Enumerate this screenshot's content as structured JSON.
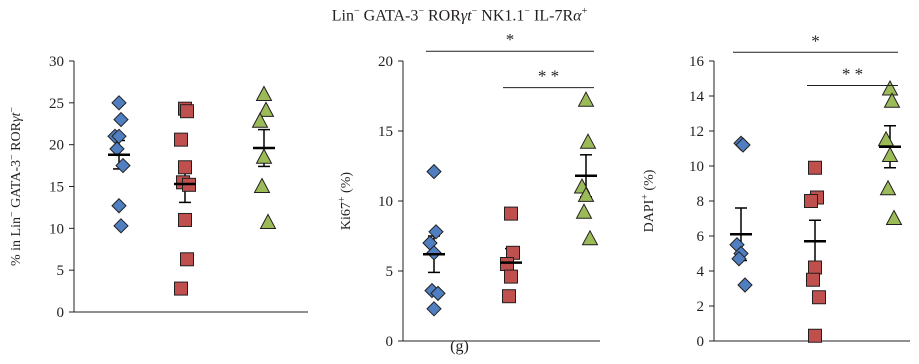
{
  "figure": {
    "title_parts": [
      {
        "t": "Lin"
      },
      {
        "sup": "−"
      },
      {
        "t": " GATA-3"
      },
      {
        "sup": "−"
      },
      {
        "t": " ROR"
      },
      {
        "it": "γt"
      },
      {
        "sup": "−"
      },
      {
        "t": " NK1.1"
      },
      {
        "sup": "−"
      },
      {
        "t": " IL-7R"
      },
      {
        "it": "α"
      },
      {
        "sup": "+"
      }
    ],
    "panel_label": "(g)"
  },
  "colors": {
    "blue": "#4f7fc0",
    "red": "#c0504d",
    "green": "#9bbb59",
    "ink": "#231f20"
  },
  "chart_data": [
    {
      "type": "scatter",
      "ylabel_parts": [
        {
          "t": "% in Lin"
        },
        {
          "sup": "−"
        },
        {
          "t": " GATA-3"
        },
        {
          "sup": "−"
        },
        {
          "t": " ROR"
        },
        {
          "it": "γt"
        },
        {
          "sup": "−"
        }
      ],
      "ylim": [
        0,
        30
      ],
      "yticks": [
        0,
        5,
        10,
        15,
        20,
        25,
        30
      ],
      "groups": [
        {
          "marker": "diamond",
          "color": "blue",
          "values": [
            25,
            23,
            21,
            21,
            19.5,
            17.5,
            12.7,
            10.3
          ],
          "mean": 18.8,
          "sem": 1.7
        },
        {
          "marker": "square",
          "color": "red",
          "values": [
            24.3,
            24,
            20.6,
            17.3,
            15.5,
            15.2,
            11,
            6.3,
            2.8
          ],
          "mean": 15.3,
          "sem": 2.2
        },
        {
          "marker": "triangle",
          "color": "green",
          "values": [
            26,
            24.1,
            22.8,
            18.5,
            15,
            10.7
          ],
          "mean": 19.6,
          "sem": 2.2
        }
      ],
      "significance": []
    },
    {
      "type": "scatter",
      "ylabel_parts": [
        {
          "t": "Ki67"
        },
        {
          "sup": "+"
        },
        {
          "t": " (%)"
        }
      ],
      "ylim": [
        0,
        20
      ],
      "yticks": [
        0,
        5,
        10,
        15,
        20
      ],
      "groups": [
        {
          "marker": "diamond",
          "color": "blue",
          "values": [
            12.1,
            7.8,
            7,
            6.3,
            3.6,
            3.4,
            2.3
          ],
          "mean": 6.2,
          "sem": 1.3
        },
        {
          "marker": "square",
          "color": "red",
          "values": [
            9.1,
            6.3,
            5.5,
            4.6,
            3.2
          ],
          "mean": 5.6,
          "sem": 1.0
        },
        {
          "marker": "triangle",
          "color": "green",
          "values": [
            17.2,
            14.2,
            11,
            10.4,
            9.2,
            7.3
          ],
          "mean": 11.8,
          "sem": 1.5
        }
      ],
      "significance": [
        {
          "from": 0,
          "to": 2,
          "label": "*",
          "y": 20.7
        },
        {
          "from": 1,
          "to": 2,
          "label": "* *",
          "y": 18.1
        }
      ]
    },
    {
      "type": "scatter",
      "ylabel_parts": [
        {
          "t": "DAPI"
        },
        {
          "sup": "+"
        },
        {
          "t": " (%)"
        }
      ],
      "ylim": [
        0,
        16
      ],
      "yticks": [
        0,
        2,
        4,
        6,
        8,
        10,
        12,
        14,
        16
      ],
      "groups": [
        {
          "marker": "diamond",
          "color": "blue",
          "values": [
            11.3,
            11.2,
            5.5,
            5,
            4.7,
            3.2
          ],
          "mean": 6.1,
          "sem": 1.5
        },
        {
          "marker": "square",
          "color": "red",
          "values": [
            9.9,
            8.2,
            8,
            4.2,
            3.5,
            2.5,
            0.3
          ],
          "mean": 5.7,
          "sem": 1.2
        },
        {
          "marker": "triangle",
          "color": "green",
          "values": [
            14.4,
            13.7,
            11.5,
            10.6,
            8.7,
            7
          ],
          "mean": 11.1,
          "sem": 1.2
        }
      ],
      "significance": [
        {
          "from": 0,
          "to": 2,
          "label": "*",
          "y": 16.5
        },
        {
          "from": 1,
          "to": 2,
          "label": "* *",
          "y": 14.6
        }
      ]
    }
  ]
}
